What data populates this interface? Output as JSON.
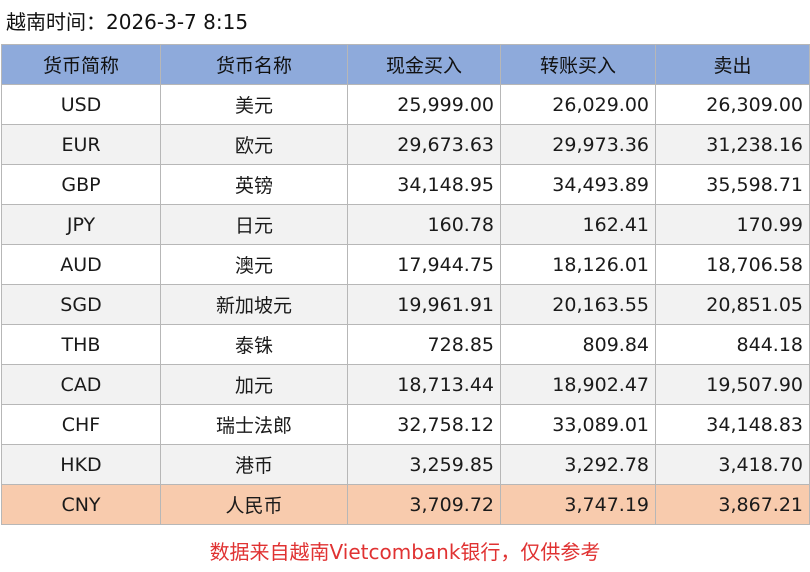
{
  "title": "越南时间：2026-3-7 8:15",
  "headers": [
    "货币简称",
    "货币名称",
    "现金买入",
    "转账买入",
    "卖出"
  ],
  "rows": [
    {
      "code": "USD",
      "name": "美元",
      "cash_buy": "25,999.00",
      "transfer_buy": "26,029.00",
      "sell": "26,309.00"
    },
    {
      "code": "EUR",
      "name": "欧元",
      "cash_buy": "29,673.63",
      "transfer_buy": "29,973.36",
      "sell": "31,238.16"
    },
    {
      "code": "GBP",
      "name": "英镑",
      "cash_buy": "34,148.95",
      "transfer_buy": "34,493.89",
      "sell": "35,598.71"
    },
    {
      "code": "JPY",
      "name": "日元",
      "cash_buy": "160.78",
      "transfer_buy": "162.41",
      "sell": "170.99"
    },
    {
      "code": "AUD",
      "name": "澳元",
      "cash_buy": "17,944.75",
      "transfer_buy": "18,126.01",
      "sell": "18,706.58"
    },
    {
      "code": "SGD",
      "name": "新加坡元",
      "cash_buy": "19,961.91",
      "transfer_buy": "20,163.55",
      "sell": "20,851.05"
    },
    {
      "code": "THB",
      "name": "泰铢",
      "cash_buy": "728.85",
      "transfer_buy": "809.84",
      "sell": "844.18"
    },
    {
      "code": "CAD",
      "name": "加元",
      "cash_buy": "18,713.44",
      "transfer_buy": "18,902.47",
      "sell": "19,507.90"
    },
    {
      "code": "CHF",
      "name": "瑞士法郎",
      "cash_buy": "32,758.12",
      "transfer_buy": "33,089.01",
      "sell": "34,148.83"
    },
    {
      "code": "HKD",
      "name": "港币",
      "cash_buy": "3,259.85",
      "transfer_buy": "3,292.78",
      "sell": "3,418.70"
    },
    {
      "code": "CNY",
      "name": "人民币",
      "cash_buy": "3,709.72",
      "transfer_buy": "3,747.19",
      "sell": "3,867.21"
    }
  ],
  "highlight_row_code": "CNY",
  "colors": {
    "header_bg": "#8eaadb",
    "highlight_bg": "#f8cbad",
    "alt_row_bg": "#f2f2f2",
    "footer_text": "#e03232"
  },
  "footer": "数据来自越南Vietcombank银行，仅供参考"
}
